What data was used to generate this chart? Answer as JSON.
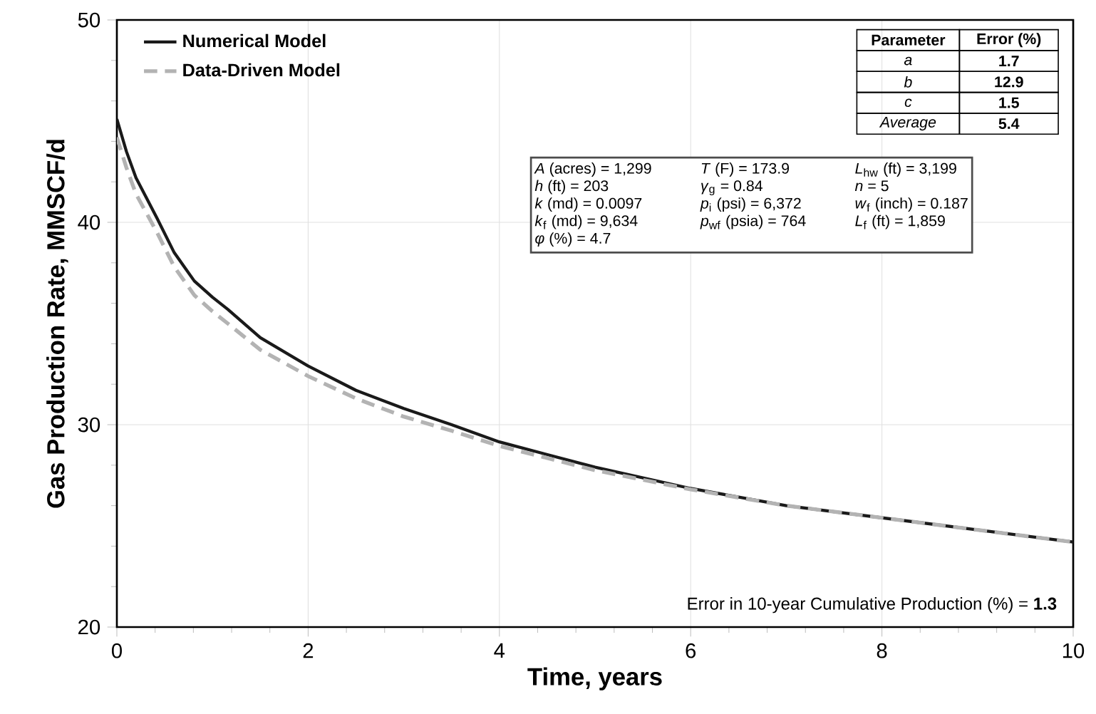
{
  "chart_data": {
    "type": "line",
    "xlabel": "Time, years",
    "ylabel": "Gas Production Rate, MMSCF/d",
    "xlim": [
      0,
      10
    ],
    "ylim": [
      20,
      50
    ],
    "xticks": [
      0,
      2,
      4,
      6,
      8,
      10
    ],
    "yticks": [
      20,
      30,
      40,
      50
    ],
    "grid": true,
    "legend": "top left",
    "marker": "none",
    "series": [
      {
        "name": "Numerical Model",
        "color": "#1a1a1a",
        "line_style": "solid",
        "x": [
          0,
          0.1,
          0.2,
          0.42,
          0.6,
          0.81,
          1.0,
          1.16,
          1.5,
          2,
          2.5,
          3,
          3.5,
          4,
          5,
          6,
          7,
          8,
          9,
          10
        ],
        "values": [
          45.1,
          43.5,
          42.2,
          40.2,
          38.5,
          37.1,
          36.3,
          35.7,
          34.3,
          32.9,
          31.7,
          30.8,
          30.0,
          29.15,
          27.9,
          26.85,
          26.0,
          25.4,
          24.8,
          24.2
        ]
      },
      {
        "name": "Data-Driven Model",
        "color": "#b3b3b3",
        "line_style": "dashed",
        "x": [
          0,
          0.1,
          0.2,
          0.42,
          0.6,
          0.81,
          1.0,
          1.16,
          1.5,
          2,
          2.5,
          3,
          3.5,
          4,
          5,
          6,
          7,
          8,
          9,
          10
        ],
        "values": [
          44.2,
          42.7,
          41.4,
          39.5,
          37.8,
          36.4,
          35.6,
          35.0,
          33.7,
          32.4,
          31.3,
          30.4,
          29.7,
          28.95,
          27.75,
          26.8,
          26.0,
          25.4,
          24.8,
          24.2
        ]
      }
    ],
    "annotations": [
      "Parameter",
      "Error (%)",
      "a",
      "1.7",
      "b",
      "12.9",
      "c",
      "1.5",
      "Average",
      "5.4",
      "*A* (acres) = 1,299",
      "*T* (F) = 173.9",
      "*L*$_{hw}$ (ft) = 3,199",
      "*h* (ft) = 203",
      "*γ*$_{g}$ = 0.84",
      "*n* = 5",
      "*k* (md) = 0.0097",
      "*p*$_{i}$ (psi) = 6,372",
      "*w*$_{f}$ (inch) = 0.187",
      "*k*$_{f}$ (md) = 9,634",
      "*p*$_{wf}$ (psia) = 764",
      "*L*$_{f}$ (ft) = 1,859",
      "*φ* (%) = 4.7",
      "Error in 10-year Cumulative Production (%) = **1.3**"
    ]
  }
}
